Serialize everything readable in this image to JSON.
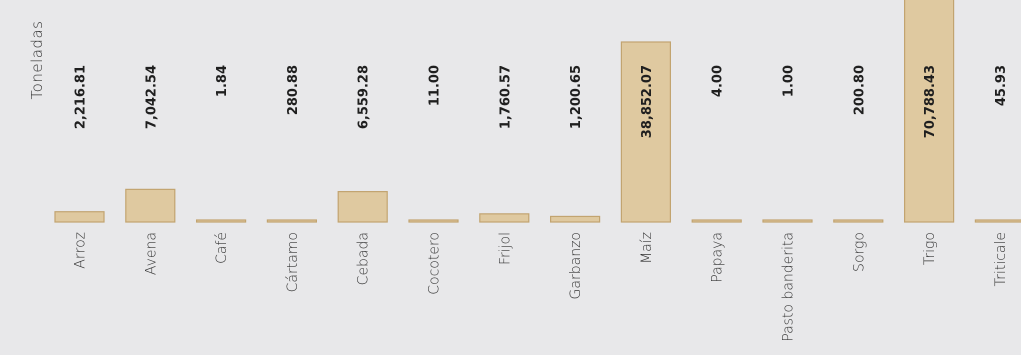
{
  "colors": {
    "background": "#e8e8ea",
    "bar_fill": "#dfc9a0",
    "bar_stroke": "#c2a470",
    "text": "#1f1f1f",
    "axis_text": "#333333"
  },
  "chart_data": {
    "type": "bar",
    "ylabel": "Toneladas",
    "categories": [
      "Arroz",
      "Avena",
      "Café",
      "Cártamo",
      "Cebada",
      "Cocotero",
      "Frijol",
      "Garbanzo",
      "Maíz",
      "Papaya",
      "Pasto banderita",
      "Sorgo",
      "Trigo",
      "Triticale"
    ],
    "values": [
      2216.81,
      7042.54,
      1.84,
      280.88,
      6559.28,
      11.0,
      1760.57,
      1200.65,
      38852.07,
      4.0,
      1.0,
      200.8,
      70788.43,
      45.93
    ],
    "value_labels": [
      "2,216.81",
      "7,042.54",
      "1.84",
      "280.88",
      "6,559.28",
      "11.00",
      "1,760.57",
      "1,200.65",
      "38,852.07",
      "4.00",
      "1.00",
      "200.80",
      "70,788.43",
      "45.93"
    ],
    "grid": false,
    "legend": "none"
  }
}
